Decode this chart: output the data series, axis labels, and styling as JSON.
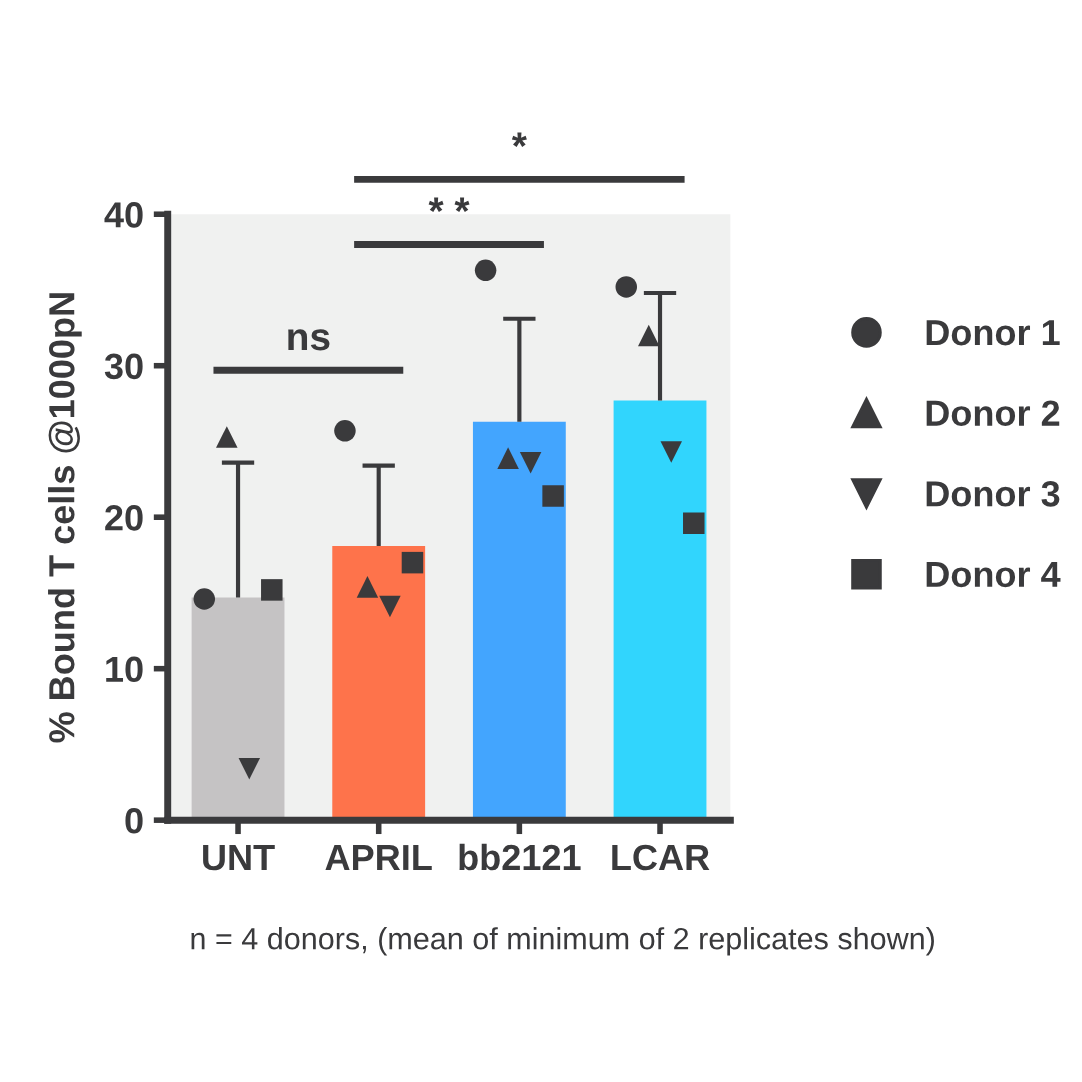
{
  "chart_data": {
    "type": "bar",
    "ylabel": "% Bound T cells @1000pN",
    "categories": [
      "UNT",
      "APRIL",
      "bb2121",
      "LCAR"
    ],
    "values": [
      14.7,
      18.1,
      26.3,
      27.7
    ],
    "colors": [
      "#c5c3c4",
      "#fe734b",
      "#43a5fe",
      "#31d5fd"
    ],
    "errors": [
      [
        14.7,
        23.6
      ],
      [
        18.1,
        23.4
      ],
      [
        26.3,
        33.1
      ],
      [
        27.7,
        34.8
      ]
    ],
    "series": [
      {
        "name": "Donor 1",
        "type": "scatter",
        "marker": "circle",
        "color": "#3a3a3c",
        "x": [
          "UNT",
          "APRIL",
          "bb2121",
          "LCAR"
        ],
        "values": [
          14.6,
          25.7,
          36.3,
          35.2
        ]
      },
      {
        "name": "Donor 2",
        "type": "scatter",
        "marker": "triangle",
        "color": "#3a3a3c",
        "x": [
          "UNT",
          "APRIL",
          "bb2121",
          "LCAR"
        ],
        "values": [
          25.3,
          15.4,
          23.9,
          32.0
        ]
      },
      {
        "name": "Donor 3",
        "type": "scatter",
        "marker": "triangle_down",
        "color": "#3a3a3c",
        "x": [
          "UNT",
          "APRIL",
          "bb2121",
          "LCAR"
        ],
        "values": [
          3.4,
          14.1,
          23.6,
          24.3
        ]
      },
      {
        "name": "Donor 4",
        "type": "scatter",
        "marker": "square",
        "color": "#3a3a3c",
        "x": [
          "UNT",
          "APRIL",
          "bb2121",
          "LCAR"
        ],
        "values": [
          15.2,
          17.0,
          21.4,
          19.6
        ]
      }
    ],
    "ylim": [
      0,
      40
    ],
    "yticks": [
      0,
      10,
      20,
      30,
      40
    ],
    "grid": false,
    "legend": "right",
    "annotations": [
      "ns",
      "* *",
      "*",
      "n = 4 donors, (mean of minimum of 2 replicates shown)"
    ]
  }
}
